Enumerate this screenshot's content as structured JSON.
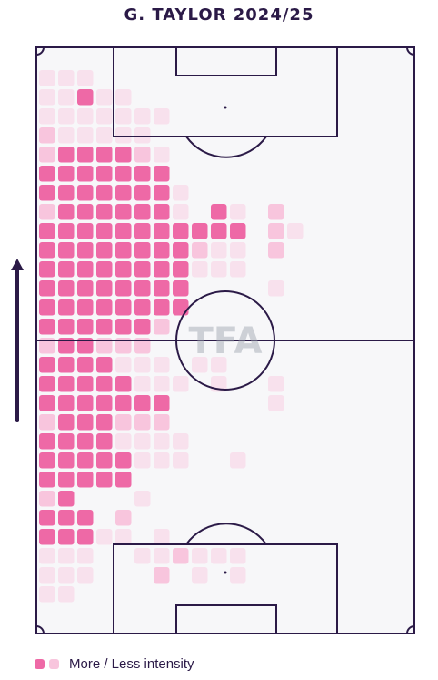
{
  "title": "G. TAYLOR 2024/25",
  "legend": {
    "label": "More / Less intensity"
  },
  "watermark": "TFA",
  "colors": {
    "line": "#2b1a47",
    "pitch": "#f7f7f9",
    "more": "#ee69a6",
    "less": "#f8c5dd"
  },
  "chart_data": {
    "type": "heatmap",
    "title": "G. TAYLOR 2024/25",
    "columns": 14,
    "rows": 28,
    "orientation": "attacking direction upwards",
    "intensity_scale": "0 (none) to 3 (most)",
    "grid": [
      [
        1,
        1,
        1,
        0,
        0,
        0,
        0,
        0,
        0,
        0,
        0,
        0,
        0,
        0
      ],
      [
        1,
        1,
        3,
        1,
        1,
        0,
        0,
        0,
        0,
        0,
        0,
        0,
        0,
        0
      ],
      [
        1,
        1,
        1,
        1,
        1,
        1,
        1,
        0,
        0,
        0,
        0,
        0,
        0,
        0
      ],
      [
        2,
        1,
        1,
        1,
        1,
        1,
        0,
        0,
        0,
        0,
        0,
        0,
        0,
        0
      ],
      [
        2,
        3,
        3,
        3,
        3,
        2,
        1,
        0,
        0,
        0,
        0,
        0,
        0,
        0
      ],
      [
        3,
        3,
        3,
        3,
        3,
        3,
        3,
        0,
        0,
        0,
        0,
        0,
        0,
        0
      ],
      [
        3,
        3,
        3,
        3,
        3,
        3,
        3,
        1,
        0,
        0,
        0,
        0,
        0,
        0
      ],
      [
        2,
        3,
        3,
        3,
        3,
        3,
        3,
        1,
        0,
        3,
        1,
        0,
        2,
        0
      ],
      [
        3,
        3,
        3,
        3,
        3,
        3,
        3,
        3,
        3,
        3,
        3,
        0,
        2,
        1
      ],
      [
        3,
        3,
        3,
        3,
        3,
        3,
        3,
        3,
        2,
        1,
        1,
        0,
        2,
        0
      ],
      [
        3,
        3,
        3,
        3,
        3,
        3,
        3,
        3,
        1,
        1,
        1,
        0,
        0,
        0
      ],
      [
        3,
        3,
        3,
        3,
        3,
        3,
        3,
        3,
        0,
        0,
        0,
        0,
        1,
        0
      ],
      [
        3,
        3,
        3,
        3,
        3,
        3,
        3,
        3,
        0,
        0,
        0,
        0,
        0,
        0
      ],
      [
        3,
        3,
        3,
        3,
        3,
        3,
        2,
        0,
        0,
        0,
        0,
        0,
        0,
        0
      ],
      [
        2,
        3,
        3,
        2,
        2,
        2,
        0,
        0,
        0,
        0,
        0,
        0,
        0,
        0
      ],
      [
        3,
        3,
        3,
        3,
        1,
        1,
        1,
        0,
        1,
        1,
        0,
        0,
        0,
        0
      ],
      [
        3,
        3,
        3,
        3,
        3,
        1,
        1,
        1,
        0,
        1,
        0,
        0,
        1,
        0
      ],
      [
        3,
        3,
        3,
        3,
        3,
        3,
        3,
        0,
        0,
        0,
        0,
        0,
        1,
        0
      ],
      [
        2,
        3,
        3,
        3,
        2,
        2,
        2,
        0,
        0,
        0,
        0,
        0,
        0,
        0
      ],
      [
        3,
        3,
        3,
        3,
        1,
        1,
        1,
        1,
        0,
        0,
        0,
        0,
        0,
        0
      ],
      [
        3,
        3,
        3,
        3,
        3,
        1,
        1,
        1,
        0,
        0,
        1,
        0,
        0,
        0
      ],
      [
        3,
        3,
        3,
        3,
        3,
        0,
        0,
        0,
        0,
        0,
        0,
        0,
        0,
        0
      ],
      [
        2,
        3,
        0,
        0,
        0,
        1,
        0,
        0,
        0,
        0,
        0,
        0,
        0,
        0
      ],
      [
        3,
        3,
        3,
        0,
        2,
        0,
        0,
        0,
        0,
        0,
        0,
        0,
        0,
        0
      ],
      [
        3,
        3,
        3,
        1,
        1,
        0,
        1,
        0,
        0,
        0,
        0,
        0,
        0,
        0
      ],
      [
        1,
        1,
        1,
        0,
        0,
        1,
        1,
        2,
        1,
        1,
        1,
        0,
        0,
        0
      ],
      [
        1,
        1,
        1,
        0,
        0,
        0,
        2,
        0,
        1,
        0,
        1,
        0,
        0,
        0
      ],
      [
        1,
        1,
        0,
        0,
        0,
        0,
        0,
        0,
        0,
        0,
        0,
        0,
        0,
        0
      ]
    ]
  }
}
